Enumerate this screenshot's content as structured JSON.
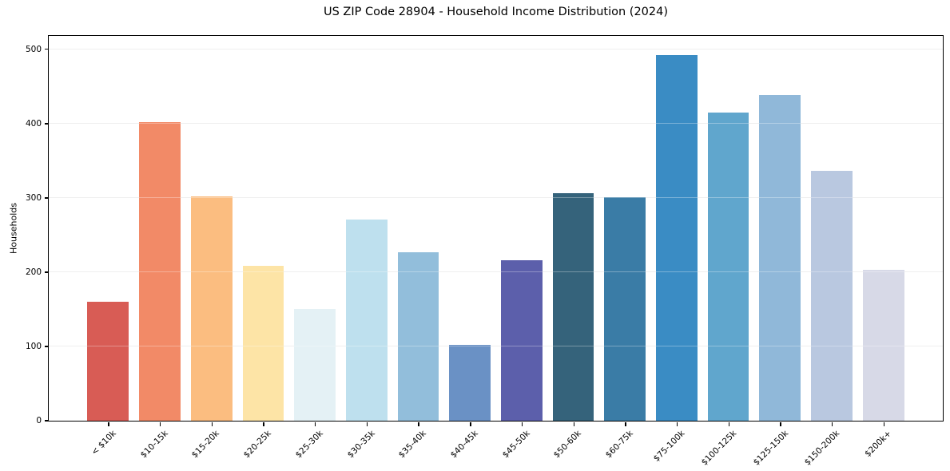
{
  "figure": {
    "title": "US ZIP Code 28904 - Household Income Distribution (2024)",
    "background_color": "#ffffff",
    "text_color": "#000000"
  },
  "chart_data": {
    "type": "bar",
    "title": "US ZIP Code 28904 - Household Income Distribution (2024)",
    "xlabel": "",
    "ylabel": "Households",
    "categories": [
      "< $10k",
      "$10-15k",
      "$15-20k",
      "$20-25k",
      "$25-30k",
      "$30-35k",
      "$35-40k",
      "$40-45k",
      "$45-50k",
      "$50-60k",
      "$60-75k",
      "$75-100k",
      "$100-125k",
      "$125-150k",
      "$150-200k",
      "$200k+"
    ],
    "values": [
      160,
      402,
      302,
      209,
      151,
      271,
      227,
      102,
      216,
      306,
      301,
      492,
      415,
      439,
      336,
      203
    ],
    "bar_colors": [
      "#d85c55",
      "#f28a67",
      "#fbbd80",
      "#fde4a6",
      "#e4f1f5",
      "#bee0ee",
      "#92bedb",
      "#6a91c5",
      "#5c5fab",
      "#35637b",
      "#3a7ca6",
      "#3a8cc4",
      "#60a6cd",
      "#90b8d9",
      "#b9c8e0",
      "#d7d9e7"
    ],
    "yticks": [
      0,
      100,
      200,
      300,
      400,
      500
    ],
    "ylim": [
      0,
      518
    ],
    "grid": "horizontal",
    "gridline_color": "#e7e7e7",
    "legend_position": "none",
    "x_tick_rotation_deg": 45
  }
}
